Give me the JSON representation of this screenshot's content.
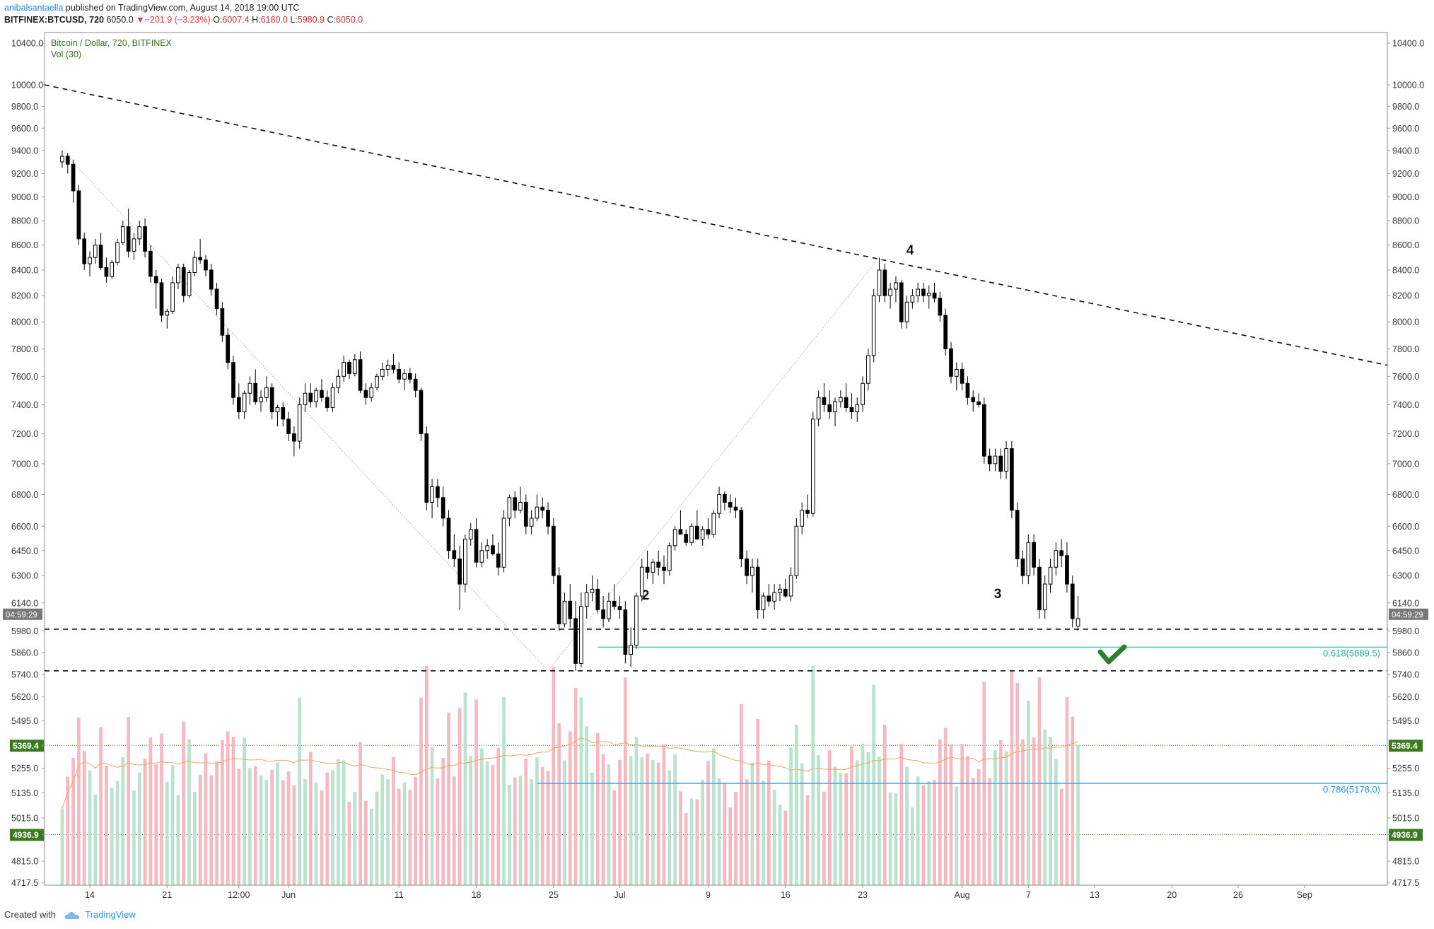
{
  "header": {
    "author": "anibalsantaella",
    "published": " published on TradingView.com, August 14, 2018 19:00 UTC",
    "symbol": "BITFINEX:BTCUSD, 720",
    "last": "6050.0",
    "change": "−201.9 (−3.23%)",
    "o_label": "O:",
    "o": "6007.4",
    "h_label": "H:",
    "h": "6180.0",
    "l_label": "L:",
    "l": "5980.9",
    "c_label": "C:",
    "c": "6050.0"
  },
  "chart_data": {
    "type": "candlestick",
    "title": "Bitcoin / Dollar, 720, BITFINEX",
    "indicator": "Vol (30)",
    "price_scale": "log",
    "ylim": [
      4717.5,
      10600.0
    ],
    "price_ticks": [
      "10400.0",
      "10000.0",
      "9800.0",
      "9600.0",
      "9400.0",
      "9200.0",
      "9000.0",
      "8800.0",
      "8600.0",
      "8400.0",
      "8200.0",
      "8000.0",
      "7800.0",
      "7600.0",
      "7400.0",
      "7200.0",
      "7000.0",
      "6800.0",
      "6600.0",
      "6450.0",
      "6300.0",
      "6140.0",
      "5980.0",
      "5860.0",
      "5740.0",
      "5620.0",
      "5495.0",
      "5369.4",
      "5255.0",
      "5135.0",
      "5015.0",
      "4936.9",
      "4815.0",
      "4717.5"
    ],
    "time_ticks": [
      "14",
      "21",
      "12:00",
      "Jun",
      "11",
      "18",
      "25",
      "Jul",
      "9",
      "16",
      "23",
      "Aug",
      "7",
      "13",
      "20",
      "26",
      "Sep"
    ],
    "time_tick_dates": [
      "2018-05-14",
      "2018-05-21",
      "2018-05-27 12:00",
      "2018-06-01",
      "2018-06-11",
      "2018-06-18",
      "2018-06-25",
      "2018-07-01",
      "2018-07-09",
      "2018-07-16",
      "2018-07-23",
      "2018-08-01",
      "2018-08-07",
      "2018-08-13",
      "2018-08-20",
      "2018-08-26",
      "2018-09-01"
    ],
    "countdown": "04:59:29",
    "highlighted_levels": [
      "5369.4",
      "4936.9"
    ],
    "fib_labels": [
      "0.618(5889.5)",
      "0.786(5178.0)"
    ],
    "wave_labels": [
      "4",
      "2",
      "3"
    ],
    "candle_interval_hours": 12,
    "candles_start": "2018-05-11 12:00",
    "candles": [
      [
        9300,
        9400,
        9250,
        9350
      ],
      [
        9350,
        9380,
        9200,
        9280
      ],
      [
        9280,
        9320,
        8950,
        9050
      ],
      [
        9050,
        9100,
        8600,
        8650
      ],
      [
        8650,
        8700,
        8400,
        8450
      ],
      [
        8450,
        8550,
        8350,
        8500
      ],
      [
        8500,
        8650,
        8450,
        8600
      ],
      [
        8600,
        8700,
        8400,
        8420
      ],
      [
        8420,
        8500,
        8300,
        8350
      ],
      [
        8350,
        8480,
        8330,
        8460
      ],
      [
        8460,
        8650,
        8440,
        8620
      ],
      [
        8620,
        8800,
        8600,
        8750
      ],
      [
        8750,
        8900,
        8500,
        8550
      ],
      [
        8550,
        8700,
        8480,
        8650
      ],
      [
        8650,
        8800,
        8600,
        8750
      ],
      [
        8750,
        8820,
        8500,
        8550
      ],
      [
        8550,
        8600,
        8300,
        8350
      ],
      [
        8350,
        8400,
        8100,
        8300
      ],
      [
        8300,
        8330,
        8000,
        8050
      ],
      [
        8050,
        8100,
        7950,
        8080
      ],
      [
        8080,
        8350,
        8060,
        8300
      ],
      [
        8300,
        8450,
        8250,
        8420
      ],
      [
        8420,
        8450,
        8150,
        8200
      ],
      [
        8200,
        8400,
        8180,
        8380
      ],
      [
        8380,
        8550,
        8350,
        8500
      ],
      [
        8500,
        8650,
        8450,
        8480
      ],
      [
        8480,
        8520,
        8350,
        8400
      ],
      [
        8400,
        8450,
        8200,
        8250
      ],
      [
        8250,
        8300,
        8050,
        8100
      ],
      [
        8100,
        8150,
        7850,
        7900
      ],
      [
        7900,
        7950,
        7650,
        7700
      ],
      [
        7700,
        7750,
        7400,
        7450
      ],
      [
        7450,
        7550,
        7300,
        7350
      ],
      [
        7350,
        7500,
        7300,
        7480
      ],
      [
        7480,
        7600,
        7400,
        7550
      ],
      [
        7550,
        7650,
        7400,
        7420
      ],
      [
        7420,
        7500,
        7350,
        7450
      ],
      [
        7450,
        7600,
        7420,
        7520
      ],
      [
        7520,
        7550,
        7300,
        7350
      ],
      [
        7350,
        7400,
        7250,
        7380
      ],
      [
        7380,
        7420,
        7250,
        7300
      ],
      [
        7300,
        7350,
        7150,
        7200
      ],
      [
        7200,
        7250,
        7050,
        7150
      ],
      [
        7150,
        7450,
        7100,
        7400
      ],
      [
        7400,
        7550,
        7350,
        7480
      ],
      [
        7480,
        7550,
        7380,
        7420
      ],
      [
        7420,
        7520,
        7380,
        7500
      ],
      [
        7500,
        7580,
        7420,
        7450
      ],
      [
        7450,
        7500,
        7350,
        7380
      ],
      [
        7380,
        7550,
        7350,
        7520
      ],
      [
        7520,
        7650,
        7480,
        7600
      ],
      [
        7600,
        7750,
        7560,
        7700
      ],
      [
        7700,
        7720,
        7580,
        7620
      ],
      [
        7620,
        7760,
        7600,
        7720
      ],
      [
        7720,
        7780,
        7480,
        7500
      ],
      [
        7500,
        7550,
        7400,
        7450
      ],
      [
        7450,
        7550,
        7420,
        7520
      ],
      [
        7520,
        7620,
        7500,
        7600
      ],
      [
        7600,
        7700,
        7570,
        7650
      ],
      [
        7650,
        7720,
        7600,
        7680
      ],
      [
        7680,
        7760,
        7620,
        7650
      ],
      [
        7650,
        7700,
        7550,
        7580
      ],
      [
        7580,
        7650,
        7500,
        7620
      ],
      [
        7620,
        7660,
        7550,
        7580
      ],
      [
        7580,
        7620,
        7450,
        7500
      ],
      [
        7500,
        7520,
        7150,
        7200
      ],
      [
        7200,
        7250,
        6700,
        6750
      ],
      [
        6750,
        6900,
        6650,
        6850
      ],
      [
        6850,
        6900,
        6720,
        6780
      ],
      [
        6780,
        6850,
        6600,
        6650
      ],
      [
        6650,
        6700,
        6400,
        6450
      ],
      [
        6450,
        6550,
        6350,
        6400
      ],
      [
        6400,
        6480,
        6100,
        6250
      ],
      [
        6250,
        6550,
        6200,
        6520
      ],
      [
        6520,
        6620,
        6480,
        6580
      ],
      [
        6580,
        6650,
        6350,
        6380
      ],
      [
        6380,
        6500,
        6350,
        6450
      ],
      [
        6450,
        6520,
        6400,
        6480
      ],
      [
        6480,
        6550,
        6420,
        6430
      ],
      [
        6430,
        6500,
        6300,
        6350
      ],
      [
        6350,
        6700,
        6320,
        6650
      ],
      [
        6650,
        6800,
        6600,
        6780
      ],
      [
        6780,
        6820,
        6650,
        6700
      ],
      [
        6700,
        6850,
        6680,
        6750
      ],
      [
        6750,
        6800,
        6550,
        6600
      ],
      [
        6600,
        6700,
        6550,
        6650
      ],
      [
        6650,
        6800,
        6630,
        6720
      ],
      [
        6720,
        6780,
        6650,
        6700
      ],
      [
        6700,
        6750,
        6550,
        6600
      ],
      [
        6600,
        6650,
        6250,
        6300
      ],
      [
        6300,
        6350,
        5980,
        6020
      ],
      [
        6020,
        6200,
        6000,
        6150
      ],
      [
        6150,
        6250,
        6000,
        6050
      ],
      [
        6050,
        6150,
        5760,
        5800
      ],
      [
        5800,
        6200,
        5780,
        6120
      ],
      [
        6120,
        6250,
        6050,
        6200
      ],
      [
        6200,
        6300,
        6150,
        6220
      ],
      [
        6220,
        6280,
        6080,
        6100
      ],
      [
        6100,
        6180,
        6000,
        6050
      ],
      [
        6050,
        6200,
        6030,
        6150
      ],
      [
        6150,
        6250,
        6100,
        6120
      ],
      [
        6120,
        6180,
        6050,
        6100
      ],
      [
        6100,
        6150,
        5800,
        5850
      ],
      [
        5850,
        6000,
        5780,
        5900
      ],
      [
        5900,
        6200,
        5880,
        6180
      ],
      [
        6180,
        6400,
        6150,
        6350
      ],
      [
        6350,
        6450,
        6280,
        6320
      ],
      [
        6320,
        6400,
        6250,
        6380
      ],
      [
        6380,
        6450,
        6300,
        6350
      ],
      [
        6350,
        6420,
        6250,
        6330
      ],
      [
        6330,
        6500,
        6300,
        6480
      ],
      [
        6480,
        6600,
        6450,
        6580
      ],
      [
        6580,
        6700,
        6550,
        6550
      ],
      [
        6550,
        6580,
        6480,
        6500
      ],
      [
        6500,
        6620,
        6480,
        6600
      ],
      [
        6600,
        6700,
        6550,
        6520
      ],
      [
        6520,
        6600,
        6480,
        6580
      ],
      [
        6580,
        6650,
        6520,
        6550
      ],
      [
        6550,
        6700,
        6530,
        6680
      ],
      [
        6680,
        6850,
        6650,
        6800
      ],
      [
        6800,
        6820,
        6700,
        6750
      ],
      [
        6750,
        6800,
        6680,
        6720
      ],
      [
        6720,
        6780,
        6650,
        6700
      ],
      [
        6700,
        6720,
        6350,
        6400
      ],
      [
        6400,
        6450,
        6250,
        6300
      ],
      [
        6300,
        6400,
        6200,
        6350
      ],
      [
        6350,
        6400,
        6050,
        6100
      ],
      [
        6100,
        6200,
        6050,
        6180
      ],
      [
        6180,
        6250,
        6120,
        6150
      ],
      [
        6150,
        6250,
        6100,
        6200
      ],
      [
        6200,
        6250,
        6150,
        6220
      ],
      [
        6220,
        6280,
        6170,
        6180
      ],
      [
        6180,
        6350,
        6150,
        6300
      ],
      [
        6300,
        6650,
        6280,
        6600
      ],
      [
        6600,
        6750,
        6550,
        6700
      ],
      [
        6700,
        6800,
        6650,
        6680
      ],
      [
        6680,
        7350,
        6660,
        7300
      ],
      [
        7300,
        7500,
        7250,
        7450
      ],
      [
        7450,
        7550,
        7350,
        7400
      ],
      [
        7400,
        7500,
        7300,
        7350
      ],
      [
        7350,
        7450,
        7250,
        7420
      ],
      [
        7420,
        7500,
        7380,
        7450
      ],
      [
        7450,
        7550,
        7350,
        7380
      ],
      [
        7380,
        7480,
        7300,
        7350
      ],
      [
        7350,
        7450,
        7280,
        7400
      ],
      [
        7400,
        7600,
        7350,
        7550
      ],
      [
        7550,
        7800,
        7500,
        7750
      ],
      [
        7750,
        8250,
        7700,
        8200
      ],
      [
        8200,
        8500,
        8150,
        8400
      ],
      [
        8400,
        8450,
        8150,
        8200
      ],
      [
        8200,
        8300,
        8100,
        8250
      ],
      [
        8250,
        8350,
        8150,
        8300
      ],
      [
        8300,
        8320,
        7950,
        8000
      ],
      [
        8000,
        8200,
        7950,
        8150
      ],
      [
        8150,
        8250,
        8100,
        8200
      ],
      [
        8200,
        8300,
        8150,
        8250
      ],
      [
        8250,
        8300,
        8150,
        8200
      ],
      [
        8200,
        8280,
        8100,
        8220
      ],
      [
        8220,
        8300,
        8150,
        8180
      ],
      [
        8180,
        8230,
        8000,
        8050
      ],
      [
        8050,
        8100,
        7750,
        7800
      ],
      [
        7800,
        7850,
        7550,
        7600
      ],
      [
        7600,
        7700,
        7500,
        7650
      ],
      [
        7650,
        7700,
        7500,
        7550
      ],
      [
        7550,
        7600,
        7400,
        7450
      ],
      [
        7450,
        7500,
        7350,
        7420
      ],
      [
        7420,
        7480,
        7380,
        7400
      ],
      [
        7400,
        7450,
        7000,
        7050
      ],
      [
        7050,
        7100,
        6950,
        7000
      ],
      [
        7000,
        7100,
        6950,
        7050
      ],
      [
        7050,
        7100,
        6900,
        6950
      ],
      [
        6950,
        7150,
        6900,
        7100
      ],
      [
        7100,
        7150,
        6650,
        6700
      ],
      [
        6700,
        6750,
        6350,
        6400
      ],
      [
        6400,
        6450,
        6250,
        6300
      ],
      [
        6300,
        6550,
        6250,
        6500
      ],
      [
        6500,
        6550,
        6300,
        6350
      ],
      [
        6350,
        6400,
        6050,
        6100
      ],
      [
        6100,
        6300,
        6050,
        6250
      ],
      [
        6250,
        6400,
        6200,
        6350
      ],
      [
        6350,
        6500,
        6300,
        6450
      ],
      [
        6450,
        6520,
        6350,
        6420
      ],
      [
        6420,
        6500,
        6200,
        6250
      ],
      [
        6250,
        6300,
        6000,
        6050
      ],
      [
        6007.4,
        6180,
        5980.9,
        6050
      ]
    ],
    "volume_scale_note": "relative heights 0-1",
    "volume_ma_note": "orange line"
  }
}
